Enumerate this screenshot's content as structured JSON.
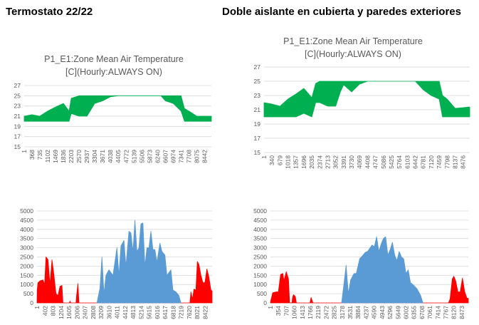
{
  "headings": {
    "left": "Termostato 22/22",
    "right": "Doble aislante en cubierta y paredes exteriores"
  },
  "colors": {
    "temperature": "#00b050",
    "heating": "#ff0000",
    "cooling": "#5b9bd5",
    "grid": "#d9d9d9"
  },
  "chart_data": [
    {
      "type": "area",
      "title_line1": "P1_E1:Zone Mean Air Temperature",
      "title_line2": "[C](Hourly:ALWAYS ON)",
      "ylim": [
        15,
        27
      ],
      "yticks": [
        15,
        17,
        19,
        21,
        23,
        25,
        27
      ],
      "xlim": [
        1,
        8760
      ],
      "xticks": [
        1,
        368,
        735,
        1102,
        1469,
        1836,
        2203,
        2570,
        2937,
        3304,
        3671,
        4038,
        4405,
        4772,
        5139,
        5506,
        5873,
        6240,
        6607,
        6974,
        7341,
        7708,
        8075,
        8442
      ],
      "grid": true,
      "series": [
        {
          "color": "#00b050",
          "band": [
            [
              1,
              20,
              21
            ],
            [
              365,
              20,
              21.3
            ],
            [
              730,
              20,
              21
            ],
            [
              1100,
              20,
              22
            ],
            [
              1470,
              20,
              22.8
            ],
            [
              1836,
              20,
              23.5
            ],
            [
              2100,
              20,
              22
            ],
            [
              2203,
              21.5,
              24.5
            ],
            [
              2570,
              21,
              25
            ],
            [
              2937,
              21,
              25
            ],
            [
              3304,
              23.5,
              25
            ],
            [
              3671,
              24,
              25
            ],
            [
              4038,
              24.8,
              25
            ],
            [
              4405,
              25,
              25
            ],
            [
              6400,
              25,
              25
            ],
            [
              6607,
              24,
              25
            ],
            [
              6974,
              23.5,
              25
            ],
            [
              7341,
              22,
              25
            ],
            [
              7500,
              20,
              22.5
            ],
            [
              7708,
              20,
              22
            ],
            [
              8075,
              20,
              21
            ],
            [
              8442,
              20,
              21
            ],
            [
              8760,
              20,
              21
            ]
          ]
        }
      ]
    },
    {
      "type": "area",
      "title_line1": "P1_E1:Zone Mean Air Temperature",
      "title_line2": "[C](Hourly:ALWAYS ON)",
      "ylim": [
        15,
        27
      ],
      "yticks": [
        15,
        17,
        19,
        21,
        23,
        25,
        27
      ],
      "xlim": [
        1,
        8760
      ],
      "xticks": [
        1,
        340,
        679,
        1018,
        1357,
        1696,
        2035,
        2374,
        2713,
        3052,
        3391,
        3730,
        4069,
        4408,
        4747,
        5086,
        5425,
        5764,
        6103,
        6442,
        6781,
        7120,
        7459,
        7798,
        8137,
        8476
      ],
      "grid": true,
      "series": [
        {
          "color": "#00b050",
          "band": [
            [
              1,
              20,
              22
            ],
            [
              340,
              20,
              21.8
            ],
            [
              679,
              20,
              21.5
            ],
            [
              1018,
              20,
              22.5
            ],
            [
              1357,
              20,
              23.2
            ],
            [
              1696,
              20.5,
              24
            ],
            [
              2035,
              20,
              22.7
            ],
            [
              2200,
              22,
              24.7
            ],
            [
              2374,
              22,
              25
            ],
            [
              2713,
              21.5,
              25
            ],
            [
              3052,
              21.5,
              25
            ],
            [
              3250,
              23.5,
              25
            ],
            [
              3391,
              24.5,
              25
            ],
            [
              3730,
              23.5,
              25
            ],
            [
              4069,
              24.6,
              25
            ],
            [
              4408,
              25,
              25
            ],
            [
              6442,
              25,
              25
            ],
            [
              6781,
              23.8,
              25
            ],
            [
              7120,
              23,
              25
            ],
            [
              7459,
              22.5,
              25
            ],
            [
              7600,
              20,
              23
            ],
            [
              7798,
              20,
              22.5
            ],
            [
              8137,
              20,
              21.2
            ],
            [
              8476,
              20,
              21.3
            ],
            [
              8760,
              20,
              21.4
            ]
          ]
        }
      ]
    },
    {
      "type": "area",
      "ylim": [
        0,
        5000
      ],
      "yticks": [
        0,
        500,
        1000,
        1500,
        2000,
        2500,
        3000,
        3500,
        4000,
        4500,
        5000
      ],
      "xlim": [
        1,
        8760
      ],
      "xticks": [
        1,
        402,
        803,
        1204,
        1605,
        2006,
        2407,
        2808,
        3209,
        3610,
        4011,
        4412,
        4813,
        5214,
        5615,
        6016,
        6417,
        6818,
        7219,
        7620,
        8021,
        8422
      ],
      "grid": true,
      "series": [
        {
          "color": "#ff0000",
          "values": [
            [
              1,
              0
            ],
            [
              10,
              700
            ],
            [
              50,
              1100
            ],
            [
              150,
              1200
            ],
            [
              300,
              1250
            ],
            [
              380,
              1000
            ],
            [
              450,
              2500
            ],
            [
              550,
              2350
            ],
            [
              650,
              1000
            ],
            [
              750,
              2350
            ],
            [
              850,
              1500
            ],
            [
              950,
              500
            ],
            [
              1050,
              400
            ],
            [
              1150,
              900
            ],
            [
              1250,
              950
            ],
            [
              1300,
              0
            ],
            [
              1620,
              0
            ],
            [
              1650,
              100
            ],
            [
              1690,
              0
            ],
            [
              1950,
              0
            ],
            [
              1980,
              400
            ],
            [
              2050,
              1050
            ],
            [
              2100,
              0
            ],
            [
              7650,
              0
            ],
            [
              7700,
              600
            ],
            [
              7780,
              200
            ],
            [
              7850,
              750
            ],
            [
              7950,
              700
            ],
            [
              8021,
              2250
            ],
            [
              8100,
              2100
            ],
            [
              8200,
              1500
            ],
            [
              8300,
              1100
            ],
            [
              8400,
              1100
            ],
            [
              8500,
              1850
            ],
            [
              8600,
              1400
            ],
            [
              8700,
              700
            ],
            [
              8760,
              650
            ],
            [
              8760,
              0
            ]
          ]
        },
        {
          "color": "#5b9bd5",
          "values": [
            [
              3000,
              0
            ],
            [
              3150,
              800
            ],
            [
              3250,
              2500
            ],
            [
              3350,
              500
            ],
            [
              3450,
              1500
            ],
            [
              3600,
              1800
            ],
            [
              3800,
              1500
            ],
            [
              4000,
              3000
            ],
            [
              4100,
              1500
            ],
            [
              4200,
              3100
            ],
            [
              4350,
              3400
            ],
            [
              4450,
              2000
            ],
            [
              4600,
              3900
            ],
            [
              4700,
              3800
            ],
            [
              4800,
              2800
            ],
            [
              4900,
              4500
            ],
            [
              5000,
              2800
            ],
            [
              5100,
              3000
            ],
            [
              5200,
              4300
            ],
            [
              5300,
              4350
            ],
            [
              5400,
              2000
            ],
            [
              5500,
              3000
            ],
            [
              5600,
              3000
            ],
            [
              5700,
              3900
            ],
            [
              5800,
              2900
            ],
            [
              5900,
              2900
            ],
            [
              6000,
              2200
            ],
            [
              6150,
              3250
            ],
            [
              6250,
              2800
            ],
            [
              6400,
              2600
            ],
            [
              6500,
              1500
            ],
            [
              6700,
              1800
            ],
            [
              6800,
              700
            ],
            [
              6950,
              600
            ],
            [
              7100,
              400
            ],
            [
              7200,
              0
            ]
          ]
        }
      ]
    },
    {
      "type": "area",
      "ylim": [
        0,
        5000
      ],
      "yticks": [
        0,
        500,
        1000,
        1500,
        2000,
        2500,
        3000,
        3500,
        4000,
        4500,
        5000
      ],
      "xlim": [
        1,
        8760
      ],
      "xticks": [
        1,
        354,
        707,
        1060,
        1413,
        1766,
        2119,
        2472,
        2825,
        3178,
        3531,
        3884,
        4237,
        4590,
        4943,
        5296,
        5649,
        6002,
        6355,
        6708,
        7061,
        7414,
        7767,
        8120,
        8473
      ],
      "grid": true,
      "series": [
        {
          "color": "#ff0000",
          "values": [
            [
              1,
              0
            ],
            [
              10,
              100
            ],
            [
              100,
              550
            ],
            [
              250,
              600
            ],
            [
              350,
              600
            ],
            [
              450,
              1550
            ],
            [
              550,
              1600
            ],
            [
              600,
              1200
            ],
            [
              700,
              1700
            ],
            [
              800,
              1300
            ],
            [
              850,
              0
            ],
            [
              950,
              0
            ],
            [
              980,
              300
            ],
            [
              1020,
              450
            ],
            [
              1100,
              350
            ],
            [
              1150,
              0
            ],
            [
              1750,
              0
            ],
            [
              1800,
              300
            ],
            [
              1880,
              0
            ],
            [
              7880,
              0
            ],
            [
              7950,
              200
            ],
            [
              8050,
              1300
            ],
            [
              8120,
              1450
            ],
            [
              8200,
              1200
            ],
            [
              8300,
              600
            ],
            [
              8400,
              600
            ],
            [
              8500,
              1350
            ],
            [
              8600,
              600
            ],
            [
              8700,
              250
            ],
            [
              8760,
              250
            ],
            [
              8760,
              0
            ]
          ]
        },
        {
          "color": "#5b9bd5",
          "values": [
            [
              3150,
              0
            ],
            [
              3250,
              1000
            ],
            [
              3350,
              2050
            ],
            [
              3450,
              500
            ],
            [
              3550,
              1250
            ],
            [
              3700,
              1600
            ],
            [
              3800,
              1600
            ],
            [
              3950,
              2400
            ],
            [
              4100,
              2600
            ],
            [
              4200,
              2750
            ],
            [
              4300,
              2800
            ],
            [
              4500,
              3150
            ],
            [
              4600,
              3050
            ],
            [
              4700,
              3600
            ],
            [
              4800,
              2800
            ],
            [
              4900,
              3200
            ],
            [
              5000,
              3500
            ],
            [
              5100,
              3600
            ],
            [
              5200,
              2600
            ],
            [
              5300,
              2900
            ],
            [
              5400,
              3300
            ],
            [
              5500,
              2600
            ],
            [
              5600,
              2300
            ],
            [
              5700,
              2800
            ],
            [
              5800,
              2500
            ],
            [
              5900,
              2400
            ],
            [
              6000,
              1600
            ],
            [
              6100,
              1800
            ],
            [
              6200,
              1100
            ],
            [
              6350,
              950
            ],
            [
              6500,
              750
            ],
            [
              6650,
              400
            ],
            [
              6750,
              0
            ]
          ]
        }
      ]
    }
  ]
}
